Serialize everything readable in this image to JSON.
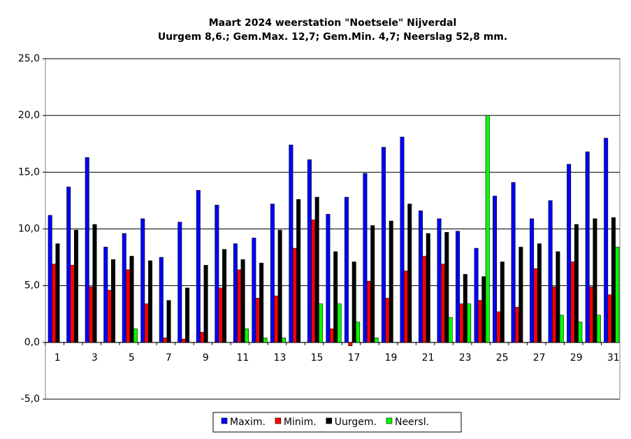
{
  "chart_data": {
    "type": "bar",
    "title": "Maart 2024  weerstation \"Noetsele\" Nijverdal",
    "subtitle": "Uurgem 8,6.; Gem.Max. 12,7; Gem.Min. 4,7; Neerslag 52,8 mm.",
    "categories": [
      "1",
      null,
      "3",
      null,
      "5",
      null,
      "7",
      null,
      "9",
      null,
      "11",
      null,
      "13",
      null,
      "15",
      null,
      "17",
      null,
      "19",
      null,
      "21",
      null,
      "23",
      null,
      "25",
      null,
      "27",
      null,
      "29",
      null,
      "31"
    ],
    "series": [
      {
        "name": "Maxim.",
        "color": "#0000ff",
        "values": [
          11.2,
          13.7,
          16.3,
          8.4,
          9.6,
          10.9,
          7.5,
          10.6,
          13.4,
          12.1,
          8.7,
          9.2,
          12.2,
          17.4,
          16.1,
          11.3,
          12.8,
          14.9,
          17.2,
          18.1,
          11.6,
          10.9,
          9.8,
          8.3,
          12.9,
          14.1,
          10.9,
          12.5,
          15.7,
          16.8,
          18.0
        ]
      },
      {
        "name": "Minim.",
        "color": "#ff0000",
        "values": [
          6.9,
          6.8,
          4.9,
          4.6,
          6.4,
          3.4,
          0.4,
          0.3,
          0.9,
          4.8,
          6.4,
          3.9,
          4.1,
          8.3,
          10.8,
          1.2,
          -0.3,
          5.4,
          3.9,
          6.3,
          7.6,
          6.9,
          3.4,
          3.7,
          2.7,
          3.1,
          6.5,
          4.9,
          7.1,
          4.9,
          4.2
        ]
      },
      {
        "name": "Uurgem.",
        "color": "#000000",
        "values": [
          8.7,
          9.9,
          10.4,
          7.3,
          7.6,
          7.2,
          3.7,
          4.8,
          6.8,
          8.2,
          7.3,
          7.0,
          9.9,
          12.6,
          12.8,
          8.0,
          7.1,
          10.3,
          10.7,
          12.2,
          9.6,
          9.7,
          6.0,
          5.8,
          7.1,
          8.4,
          8.7,
          8.0,
          10.4,
          10.9,
          11.0
        ]
      },
      {
        "name": "Neersl.",
        "color": "#00ff00",
        "values": [
          0,
          0,
          0,
          0,
          1.2,
          0,
          0,
          0,
          0,
          0,
          1.2,
          0.4,
          0.4,
          0,
          3.4,
          3.4,
          1.8,
          0.4,
          0,
          0,
          0,
          2.2,
          3.4,
          20.0,
          0,
          0,
          0,
          2.4,
          1.8,
          2.4,
          8.4
        ]
      }
    ],
    "ylim": [
      -5,
      25
    ],
    "yticks": [
      {
        "value": -5,
        "label": "-5,0"
      },
      {
        "value": 0,
        "label": "0,0"
      },
      {
        "value": 5,
        "label": "5,0"
      },
      {
        "value": 10,
        "label": "10,0"
      },
      {
        "value": 15,
        "label": "15,0"
      },
      {
        "value": 20,
        "label": "20,0"
      },
      {
        "value": 25,
        "label": "25,0"
      }
    ],
    "grid": true,
    "legend": "bottom"
  }
}
